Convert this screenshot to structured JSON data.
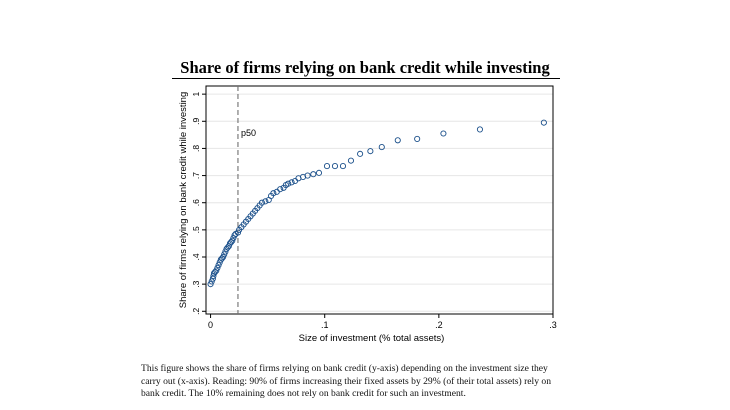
{
  "slide": {
    "title": "Share of firms relying on bank credit while investing",
    "caption_lines": [
      "This figure shows the share of firms relying on bank credit (y-axis) depending on the investment size they",
      "carry out (x-axis).  Reading: 90% of firms increasing their fixed assets by 29% (of their total assets) rely on",
      "bank credit. The 10% remaining does  not rely on bank credit for such an investment."
    ]
  },
  "colors": {
    "marker": "#1a4f8a",
    "grid": "#e6e6e6",
    "ref_line": "#707070",
    "frame": "#000000"
  },
  "chart_data": {
    "type": "scatter",
    "xlabel": "Size of investment (% total assets)",
    "ylabel": "Share of firms relying on bank credit while investing",
    "xlim": [
      -0.004,
      0.3
    ],
    "ylim": [
      0.19,
      1.03
    ],
    "x_ticks": [
      {
        "value": 0,
        "label": "0"
      },
      {
        "value": 0.1,
        "label": ".1"
      },
      {
        "value": 0.2,
        "label": ".2"
      },
      {
        "value": 0.3,
        "label": ".3"
      }
    ],
    "y_ticks": [
      {
        "value": 0.2,
        "label": ".2"
      },
      {
        "value": 0.3,
        "label": ".3"
      },
      {
        "value": 0.4,
        "label": ".4"
      },
      {
        "value": 0.5,
        "label": ".5"
      },
      {
        "value": 0.6,
        "label": ".6"
      },
      {
        "value": 0.7,
        "label": ".7"
      },
      {
        "value": 0.8,
        "label": ".8"
      },
      {
        "value": 0.9,
        "label": ".9"
      },
      {
        "value": 1,
        "label": "1"
      }
    ],
    "grid": "horizontal",
    "reference_line": {
      "x": 0.024,
      "label": "p50"
    },
    "points": [
      [
        0.0,
        0.3
      ],
      [
        0.001,
        0.31
      ],
      [
        0.002,
        0.32
      ],
      [
        0.0025,
        0.33
      ],
      [
        0.003,
        0.34
      ],
      [
        0.004,
        0.345
      ],
      [
        0.005,
        0.35
      ],
      [
        0.006,
        0.36
      ],
      [
        0.007,
        0.37
      ],
      [
        0.008,
        0.38
      ],
      [
        0.009,
        0.39
      ],
      [
        0.01,
        0.395
      ],
      [
        0.011,
        0.4
      ],
      [
        0.012,
        0.41
      ],
      [
        0.013,
        0.42
      ],
      [
        0.014,
        0.43
      ],
      [
        0.015,
        0.435
      ],
      [
        0.016,
        0.44
      ],
      [
        0.017,
        0.45
      ],
      [
        0.018,
        0.455
      ],
      [
        0.019,
        0.46
      ],
      [
        0.02,
        0.47
      ],
      [
        0.021,
        0.48
      ],
      [
        0.022,
        0.485
      ],
      [
        0.024,
        0.49
      ],
      [
        0.025,
        0.5
      ],
      [
        0.027,
        0.51
      ],
      [
        0.029,
        0.52
      ],
      [
        0.031,
        0.53
      ],
      [
        0.033,
        0.54
      ],
      [
        0.035,
        0.55
      ],
      [
        0.037,
        0.56
      ],
      [
        0.039,
        0.57
      ],
      [
        0.041,
        0.58
      ],
      [
        0.043,
        0.59
      ],
      [
        0.045,
        0.6
      ],
      [
        0.048,
        0.605
      ],
      [
        0.051,
        0.61
      ],
      [
        0.053,
        0.625
      ],
      [
        0.055,
        0.635
      ],
      [
        0.058,
        0.64
      ],
      [
        0.061,
        0.65
      ],
      [
        0.064,
        0.655
      ],
      [
        0.066,
        0.665
      ],
      [
        0.068,
        0.67
      ],
      [
        0.071,
        0.675
      ],
      [
        0.074,
        0.68
      ],
      [
        0.077,
        0.69
      ],
      [
        0.081,
        0.695
      ],
      [
        0.085,
        0.7
      ],
      [
        0.09,
        0.705
      ],
      [
        0.095,
        0.71
      ],
      [
        0.102,
        0.735
      ],
      [
        0.109,
        0.735
      ],
      [
        0.116,
        0.735
      ],
      [
        0.123,
        0.755
      ],
      [
        0.131,
        0.78
      ],
      [
        0.14,
        0.79
      ],
      [
        0.15,
        0.805
      ],
      [
        0.164,
        0.83
      ],
      [
        0.181,
        0.835
      ],
      [
        0.204,
        0.855
      ],
      [
        0.236,
        0.87
      ],
      [
        0.292,
        0.895
      ]
    ]
  }
}
